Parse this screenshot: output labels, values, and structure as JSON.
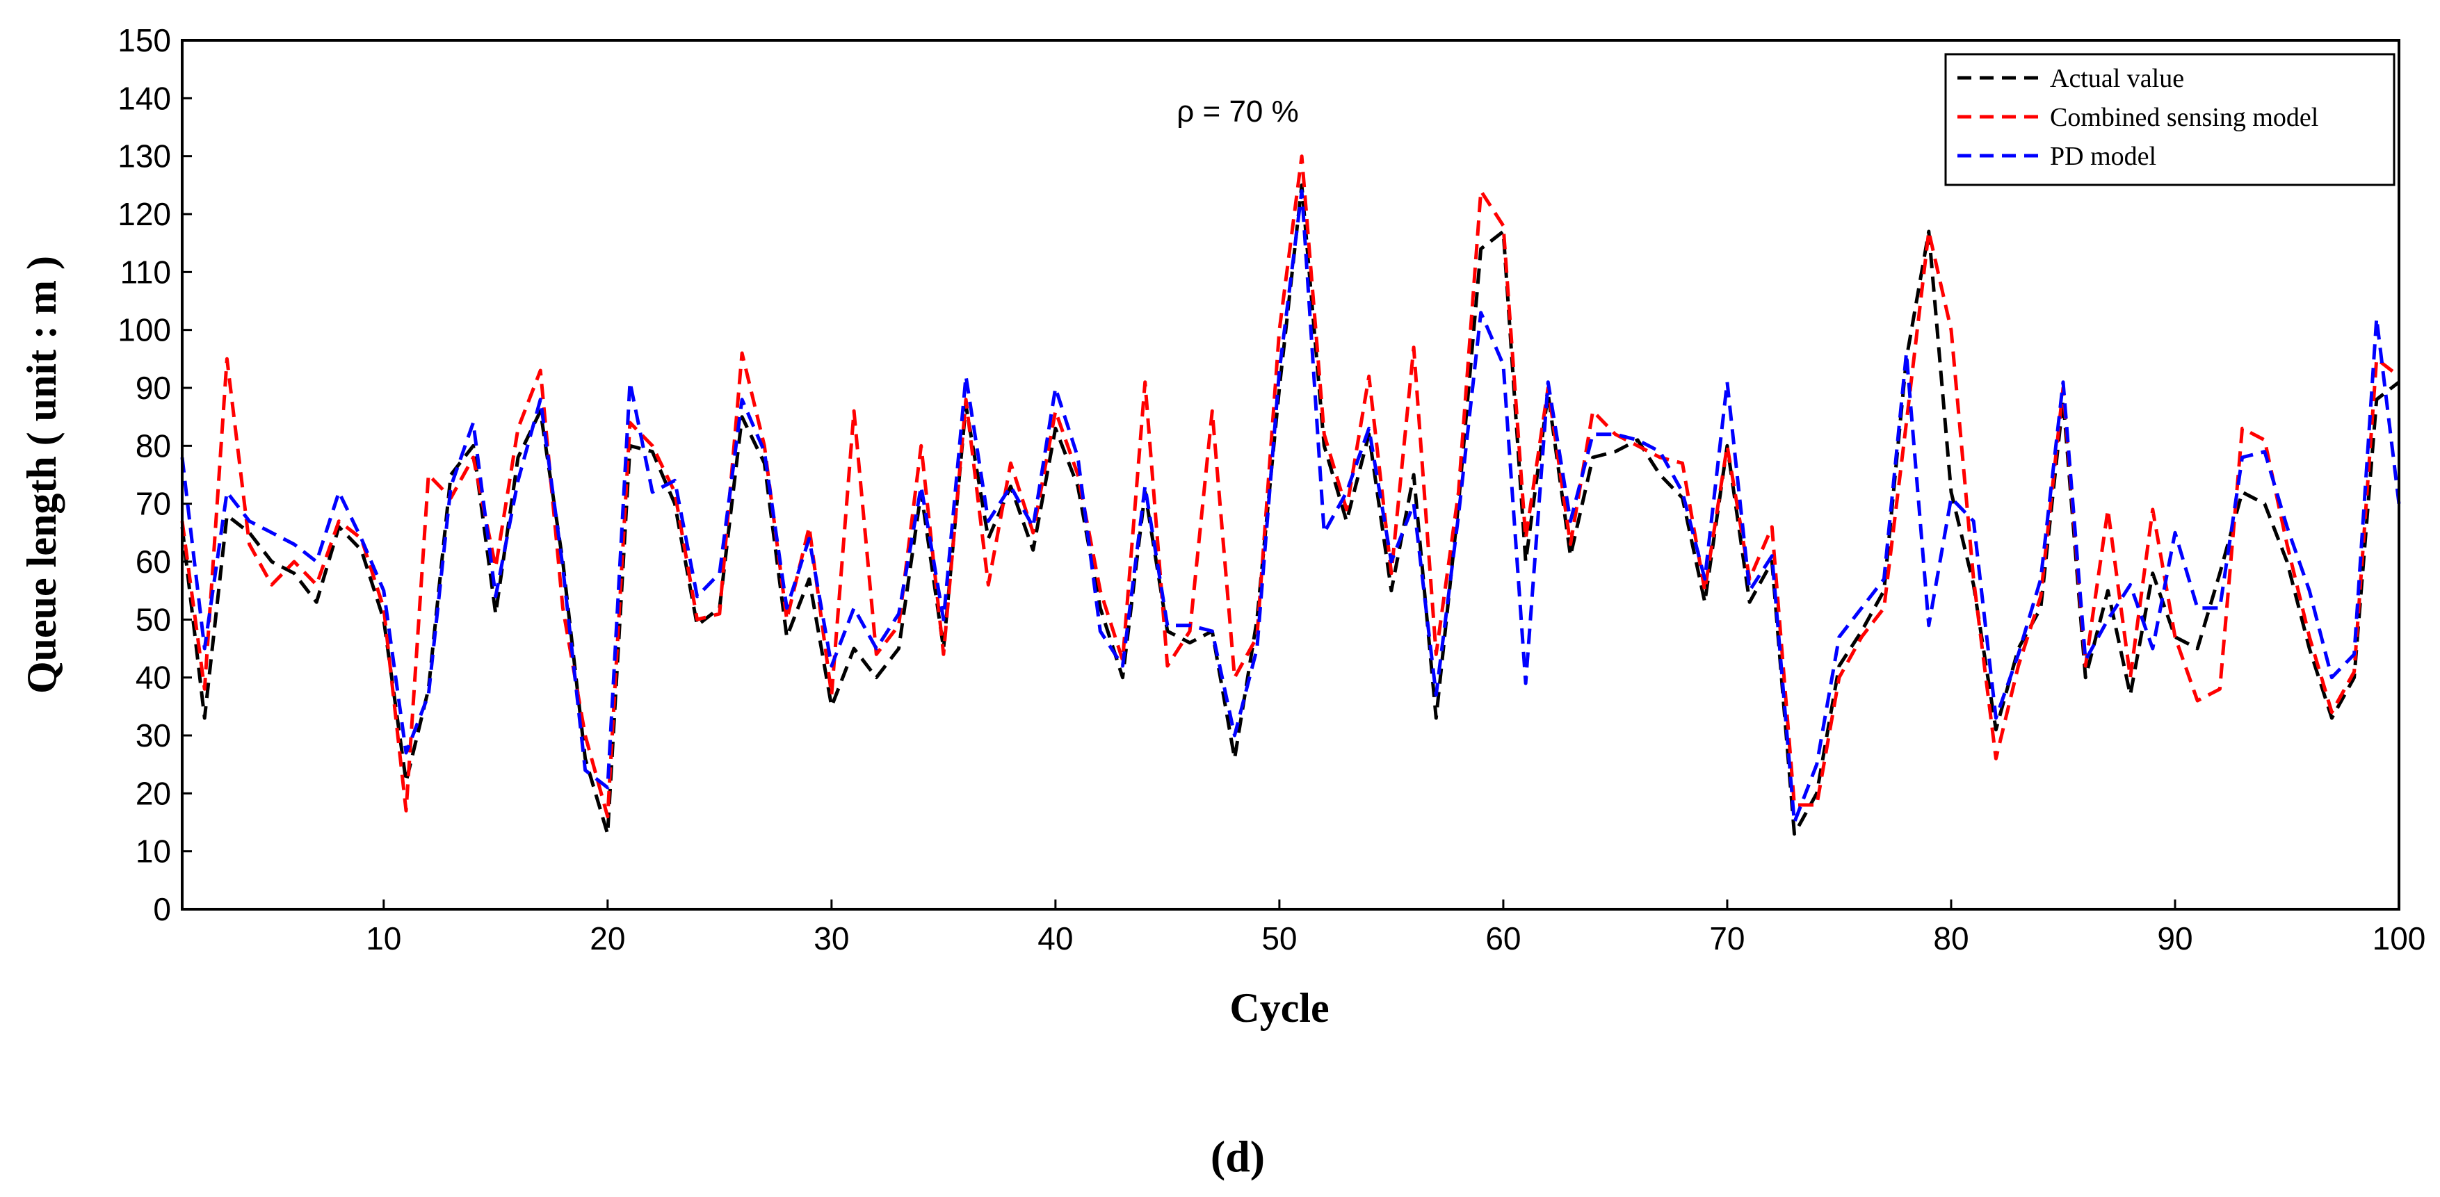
{
  "chart_data": {
    "type": "line",
    "title": "",
    "annotation": "ρ = 70 %",
    "caption": "(d)",
    "xlabel": "Cycle",
    "ylabel": "Queue  length  ( unit : m )",
    "xlim": [
      1,
      100
    ],
    "ylim": [
      0,
      150
    ],
    "xticks": [
      10,
      20,
      30,
      40,
      50,
      60,
      70,
      80,
      90,
      100
    ],
    "yticks": [
      0,
      10,
      20,
      30,
      40,
      50,
      60,
      70,
      80,
      90,
      100,
      110,
      120,
      130,
      140,
      150
    ],
    "legend_position": "top-right",
    "x": [
      1,
      2,
      3,
      4,
      5,
      6,
      7,
      8,
      9,
      10,
      11,
      12,
      13,
      14,
      15,
      16,
      17,
      18,
      19,
      20,
      21,
      22,
      23,
      24,
      25,
      26,
      27,
      28,
      29,
      30,
      31,
      32,
      33,
      34,
      35,
      36,
      37,
      38,
      39,
      40,
      41,
      42,
      43,
      44,
      45,
      46,
      47,
      48,
      49,
      50,
      51,
      52,
      53,
      54,
      55,
      56,
      57,
      58,
      59,
      60,
      61,
      62,
      63,
      64,
      65,
      66,
      67,
      68,
      69,
      70,
      71,
      72,
      73,
      74,
      75,
      76,
      77,
      78,
      79,
      80,
      81,
      82,
      83,
      84,
      85,
      86,
      87,
      88,
      89,
      90,
      91,
      92,
      93,
      94,
      95,
      96,
      97,
      98,
      99,
      100
    ],
    "series": [
      {
        "name": "Actual value",
        "color": "#000000",
        "values": [
          66,
          33,
          68,
          65,
          60,
          58,
          53,
          66,
          62,
          50,
          22,
          38,
          75,
          80,
          51,
          78,
          86,
          60,
          26,
          13,
          80,
          79,
          70,
          49,
          52,
          85,
          77,
          47,
          57,
          35,
          45,
          40,
          45,
          72,
          45,
          87,
          64,
          73,
          62,
          83,
          73,
          52,
          40,
          72,
          48,
          46,
          48,
          26,
          50,
          90,
          125,
          80,
          67,
          82,
          55,
          75,
          33,
          70,
          114,
          117,
          60,
          89,
          61,
          78,
          79,
          81,
          75,
          71,
          53,
          80,
          53,
          60,
          13,
          20,
          42,
          48,
          55,
          95,
          117,
          72,
          56,
          31,
          45,
          52,
          88,
          40,
          55,
          37,
          58,
          47,
          45,
          58,
          72,
          70,
          60,
          45,
          33,
          40,
          88,
          91
        ]
      },
      {
        "name": "Combined sensing model",
        "color": "#ff0000",
        "values": [
          67,
          38,
          95,
          63,
          56,
          60,
          56,
          67,
          64,
          52,
          17,
          75,
          71,
          78,
          59,
          83,
          93,
          52,
          30,
          16,
          84,
          80,
          72,
          50,
          51,
          96,
          80,
          50,
          66,
          37,
          86,
          44,
          49,
          80,
          44,
          88,
          56,
          77,
          65,
          86,
          75,
          55,
          43,
          91,
          42,
          48,
          86,
          40,
          47,
          100,
          130,
          82,
          69,
          92,
          58,
          97,
          44,
          72,
          124,
          118,
          64,
          90,
          63,
          86,
          82,
          80,
          78,
          77,
          55,
          80,
          57,
          66,
          18,
          18,
          40,
          47,
          52,
          84,
          117,
          100,
          57,
          26,
          42,
          54,
          90,
          42,
          69,
          40,
          69,
          47,
          36,
          38,
          83,
          81,
          63,
          47,
          34,
          41,
          95,
          92
        ]
      },
      {
        "name": "PD model",
        "color": "#0000ff",
        "values": [
          78,
          45,
          72,
          67,
          65,
          63,
          60,
          72,
          64,
          55,
          27,
          37,
          73,
          84,
          54,
          74,
          88,
          59,
          24,
          21,
          91,
          72,
          74,
          54,
          58,
          88,
          79,
          52,
          64,
          42,
          52,
          45,
          51,
          73,
          50,
          92,
          67,
          73,
          66,
          90,
          78,
          48,
          42,
          73,
          49,
          49,
          48,
          30,
          45,
          93,
          124,
          65,
          72,
          83,
          60,
          70,
          37,
          68,
          103,
          94,
          39,
          91,
          67,
          82,
          82,
          81,
          79,
          72,
          57,
          91,
          55,
          61,
          15,
          25,
          47,
          52,
          57,
          96,
          49,
          71,
          67,
          33,
          44,
          57,
          91,
          43,
          50,
          56,
          45,
          65,
          52,
          52,
          78,
          79,
          66,
          55,
          40,
          44,
          102,
          70
        ]
      }
    ]
  }
}
